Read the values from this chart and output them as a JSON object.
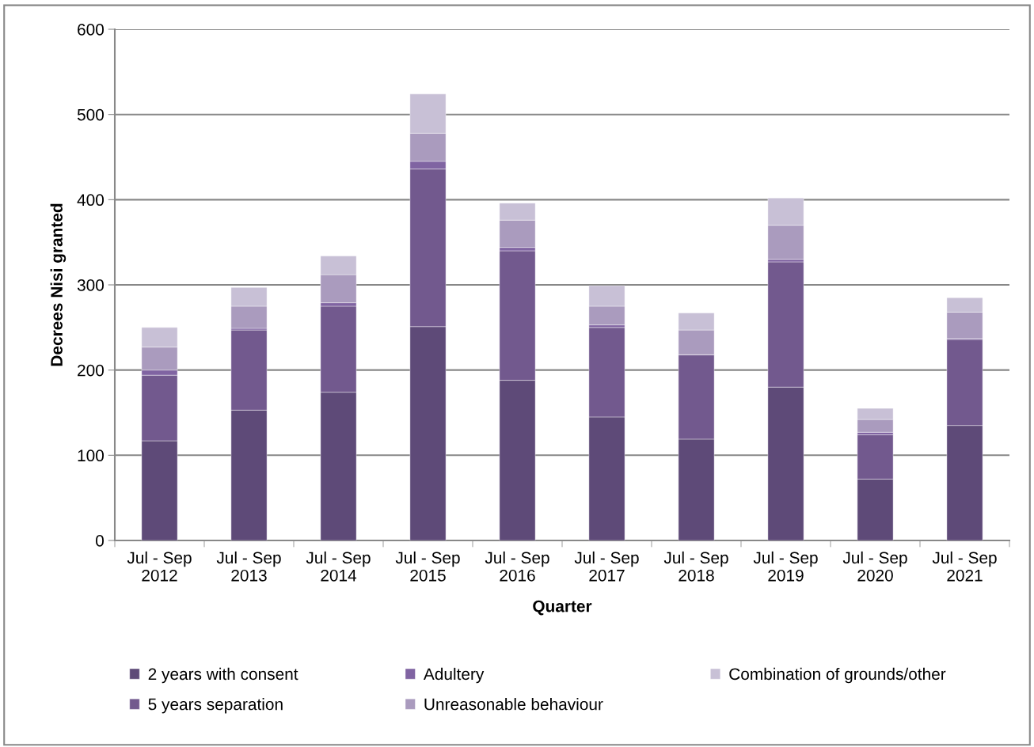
{
  "chart_data": {
    "type": "bar",
    "stacked": true,
    "xlabel": "Quarter",
    "ylabel": "Decrees Nisi granted",
    "categories": [
      "Jul - Sep\n2012",
      "Jul - Sep\n2013",
      "Jul - Sep\n2014",
      "Jul - Sep\n2015",
      "Jul - Sep\n2016",
      "Jul - Sep\n2017",
      "Jul - Sep\n2018",
      "Jul - Sep\n2019",
      "Jul - Sep\n2020",
      "Jul - Sep\n2021"
    ],
    "series": [
      {
        "name": "2 years with consent",
        "color": "#5e4a78",
        "values": [
          117,
          153,
          174,
          251,
          188,
          145,
          119,
          180,
          72,
          135
        ]
      },
      {
        "name": "5 years separation",
        "color": "#72598e",
        "values": [
          77,
          94,
          101,
          185,
          152,
          105,
          99,
          147,
          52,
          101
        ]
      },
      {
        "name": "Adultery",
        "color": "#8064a2",
        "values": [
          6,
          2,
          4,
          9,
          4,
          3,
          0,
          3,
          3,
          1
        ]
      },
      {
        "name": "Unreasonable behaviour",
        "color": "#aa9bbe",
        "values": [
          27,
          26,
          33,
          33,
          32,
          22,
          29,
          40,
          15,
          31
        ]
      },
      {
        "name": "Combination of grounds/other",
        "color": "#c8c0d6",
        "values": [
          23,
          22,
          22,
          46,
          20,
          24,
          20,
          32,
          13,
          17
        ]
      }
    ],
    "ylim": [
      0,
      600
    ],
    "yticks": [
      0,
      100,
      200,
      300,
      400,
      500,
      600
    ],
    "grid": "y",
    "legend": "bottom"
  }
}
